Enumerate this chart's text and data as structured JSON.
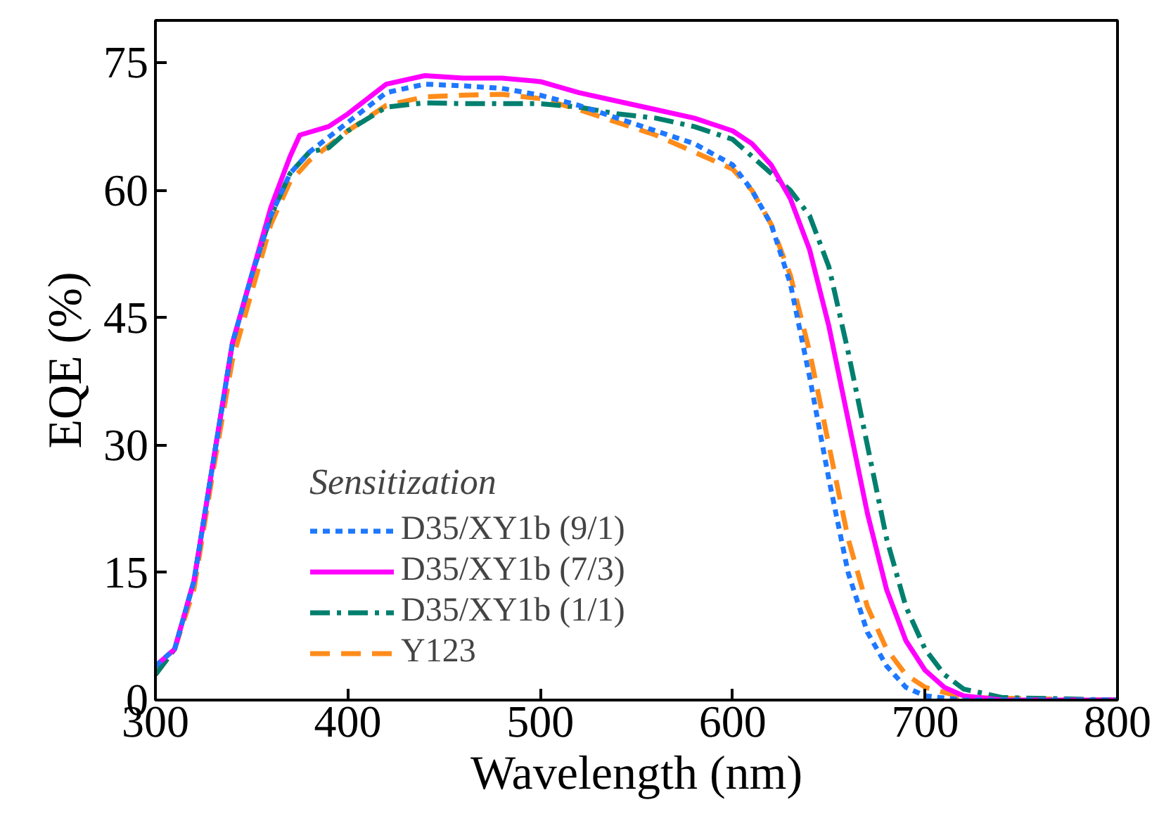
{
  "chart_data": {
    "type": "line",
    "xlabel": "Wavelength (nm)",
    "ylabel": "EQE (%)",
    "legend_title": "Sensitization",
    "legend": "bottom left",
    "grid": false,
    "xlim": [
      300,
      800
    ],
    "ylim": [
      0,
      80
    ],
    "xticks": [
      300,
      400,
      500,
      600,
      700,
      800
    ],
    "yticks": [
      0,
      15,
      30,
      45,
      60,
      75
    ],
    "series": [
      {
        "name": "D35/XY1b (9/1)",
        "color": "#1e78ff",
        "line_style": "dotted",
        "x": [
          300,
          310,
          320,
          330,
          340,
          350,
          360,
          370,
          380,
          400,
          420,
          440,
          460,
          480,
          500,
          520,
          540,
          560,
          580,
          600,
          610,
          620,
          630,
          640,
          650,
          660,
          670,
          680,
          690,
          700,
          720,
          800
        ],
        "values": [
          4,
          6,
          14,
          28,
          42,
          50,
          57,
          62,
          64.5,
          68,
          71.5,
          72.5,
          72.3,
          72,
          71.2,
          70,
          68.5,
          67,
          65.5,
          63,
          60,
          56,
          49,
          38,
          26,
          15,
          8,
          4,
          1.5,
          0.5,
          0,
          0
        ]
      },
      {
        "name": "D35/XY1b (7/3)",
        "color": "#ff00ff",
        "line_style": "solid",
        "x": [
          300,
          310,
          320,
          330,
          340,
          350,
          360,
          370,
          375,
          390,
          400,
          420,
          440,
          460,
          480,
          500,
          520,
          540,
          560,
          580,
          600,
          610,
          620,
          630,
          640,
          650,
          660,
          670,
          680,
          690,
          700,
          710,
          720,
          740,
          800
        ],
        "values": [
          4,
          6,
          14,
          28,
          42,
          50,
          58,
          64,
          66.5,
          67.5,
          69,
          72.5,
          73.5,
          73.2,
          73.2,
          72.8,
          71.5,
          70.5,
          69.5,
          68.5,
          67,
          65.5,
          63,
          59,
          53,
          44,
          33,
          22,
          13,
          7,
          3.5,
          1.5,
          0.5,
          0,
          0
        ]
      },
      {
        "name": "D35/XY1b (1/1)",
        "color": "#007f6e",
        "line_style": "dashdot",
        "x": [
          300,
          310,
          320,
          330,
          340,
          350,
          360,
          370,
          380,
          390,
          400,
          420,
          440,
          460,
          480,
          500,
          520,
          540,
          560,
          580,
          600,
          620,
          630,
          640,
          650,
          660,
          670,
          680,
          690,
          700,
          710,
          720,
          740,
          800
        ],
        "values": [
          3,
          6,
          14,
          28,
          42,
          50,
          57,
          62,
          64.5,
          65,
          67,
          69.8,
          70.3,
          70.2,
          70.2,
          70.2,
          69.8,
          69,
          68.5,
          67.5,
          66,
          62,
          60,
          57,
          51,
          41,
          30,
          19,
          11,
          6,
          3,
          1.3,
          0.3,
          0
        ]
      },
      {
        "name": "Y123",
        "color": "#ff8c1a",
        "line_style": "dashed",
        "x": [
          300,
          310,
          320,
          330,
          340,
          350,
          360,
          370,
          380,
          400,
          420,
          440,
          460,
          480,
          500,
          520,
          540,
          560,
          580,
          600,
          610,
          620,
          630,
          640,
          650,
          660,
          670,
          680,
          690,
          700,
          720,
          800
        ],
        "values": [
          3,
          6,
          13,
          27,
          40,
          48,
          56,
          61,
          63.5,
          67,
          70,
          71,
          71.2,
          71.3,
          70.8,
          69.5,
          68,
          66.5,
          64.5,
          62.5,
          60,
          56,
          50,
          41,
          30,
          19,
          11,
          6,
          3,
          1.5,
          0.3,
          0
        ]
      }
    ]
  }
}
